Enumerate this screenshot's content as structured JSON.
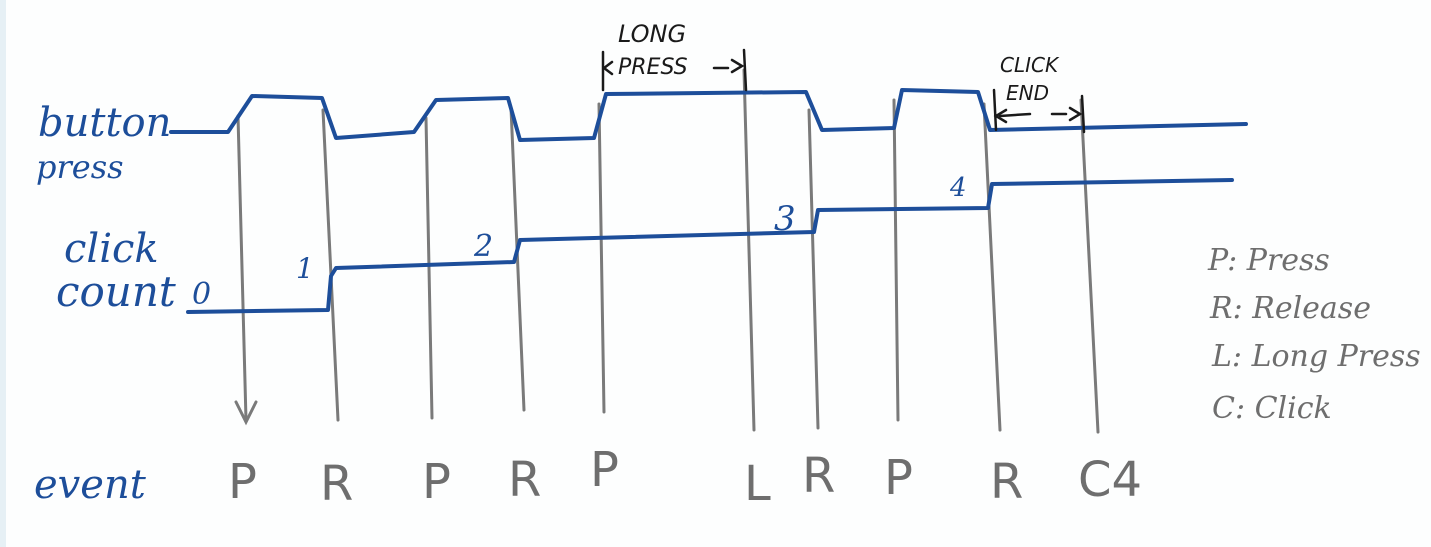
{
  "labels": {
    "button_press_line1": "button",
    "button_press_line2": "press",
    "click_count_line1": "click",
    "click_count_line2": "count",
    "event": "event"
  },
  "counts": [
    "0",
    "1",
    "2",
    "3",
    "4"
  ],
  "events": [
    "P",
    "R",
    "P",
    "R",
    "P",
    "L",
    "R",
    "P",
    "R",
    "C4"
  ],
  "annotations": {
    "long_press_line1": "LONG",
    "long_press_line2": "PRESS",
    "click_end_line1": "CLICK",
    "click_end_line2": "END"
  },
  "legend": [
    "P: Press",
    "R: Release",
    "L: Long Press",
    "C: Click"
  ],
  "colors": {
    "signal": "#1d4e9a",
    "event_lines": "#7a7a7a",
    "annotation": "#1a1a1a"
  }
}
